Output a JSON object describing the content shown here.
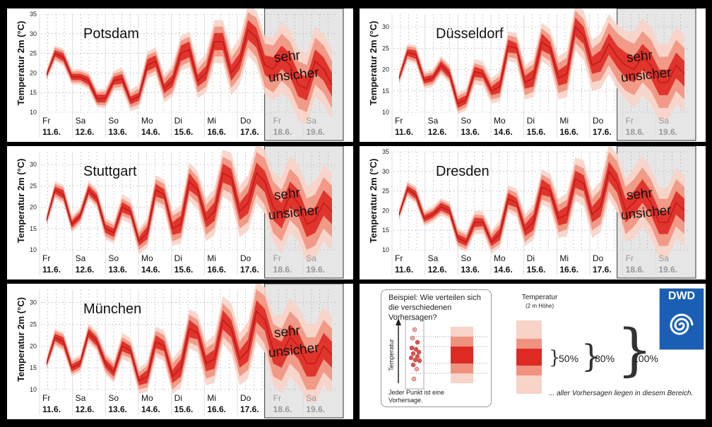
{
  "chart_data": [
    {
      "type": "area",
      "title": "Potsdam",
      "ylabel": "Temperatur 2m (°C)",
      "ylim": [
        10,
        35
      ],
      "yticks": [
        10,
        15,
        20,
        25,
        30,
        35
      ],
      "days": [
        "Fr",
        "Sa",
        "So",
        "Mo",
        "Di",
        "Mi",
        "Do",
        "Fr",
        "Sa"
      ],
      "dates": [
        "11.6.",
        "12.6.",
        "13.6.",
        "14.6.",
        "15.6.",
        "16.6.",
        "17.6.",
        "18.6.",
        "19.6."
      ],
      "uncertain_label": "sehr unsicher",
      "uncertain_from_day": 7,
      "median": [
        19.5,
        25,
        24,
        19,
        19,
        18,
        13.5,
        13.5,
        18,
        18.5,
        13,
        14,
        22,
        23,
        16,
        18,
        25,
        26,
        18,
        20,
        28,
        28,
        20,
        23,
        31,
        29,
        22,
        21,
        24,
        22,
        17,
        16,
        23,
        21,
        17
      ],
      "spread50": [
        0.5,
        0.8,
        1,
        0.8,
        0.8,
        1,
        1,
        1,
        1,
        1.2,
        1,
        1,
        1.5,
        1.5,
        1.2,
        1.5,
        2,
        2,
        1.5,
        1.8,
        2.2,
        2.2,
        2,
        2,
        2.5,
        2.5,
        2.5,
        3,
        3,
        3,
        3,
        3,
        3,
        3,
        3
      ],
      "spread80": [
        1,
        1.5,
        1.6,
        1.4,
        1.4,
        1.6,
        1.6,
        1.8,
        1.8,
        2,
        1.8,
        2,
        2.5,
        2.5,
        2.5,
        3,
        3.2,
        3.2,
        3,
        3.5,
        3.8,
        3.8,
        3.8,
        4,
        4.5,
        5,
        5.5,
        6,
        6,
        6,
        6,
        6,
        6,
        6,
        6
      ],
      "spread100": [
        1.5,
        2,
        2.2,
        2,
        2,
        2.2,
        2.2,
        2.5,
        2.5,
        3,
        2.8,
        3,
        3.5,
        3.5,
        3.5,
        4,
        4.5,
        4.5,
        4.5,
        5,
        5.5,
        5.5,
        5.8,
        6,
        6.5,
        7,
        7.5,
        8,
        9,
        9,
        9,
        9,
        9,
        9,
        9
      ]
    },
    {
      "type": "area",
      "title": "Düsseldorf",
      "ylabel": "Temperatur 2m (°C)",
      "ylim": [
        10,
        33
      ],
      "yticks": [
        10,
        15,
        20,
        25,
        30
      ],
      "days": [
        "Fr",
        "Sa",
        "So",
        "Mo",
        "Di",
        "Mi",
        "Do",
        "Fr",
        "Sa"
      ],
      "dates": [
        "11.6.",
        "12.6.",
        "13.6.",
        "14.6.",
        "15.6.",
        "16.6.",
        "17.6.",
        "18.6.",
        "19.6."
      ],
      "uncertain_label": "sehr unsicher",
      "uncertain_from_day": 7,
      "median": [
        18,
        24,
        23.5,
        17.5,
        18,
        21,
        19,
        12,
        13,
        19.5,
        19,
        15,
        16,
        25.5,
        25,
        17,
        18,
        26.5,
        25,
        18,
        19,
        30,
        28,
        21,
        22,
        26,
        23,
        21,
        20,
        23,
        21,
        17,
        17,
        21,
        19
      ],
      "spread50": [
        0.5,
        0.8,
        1,
        0.8,
        0.8,
        1,
        1,
        1,
        1,
        1.2,
        1,
        1,
        1.5,
        1.5,
        1.2,
        1.5,
        2,
        2,
        1.5,
        1.8,
        2.2,
        2.2,
        2,
        2,
        2.5,
        2.5,
        2.5,
        3,
        3,
        3,
        3,
        3,
        3,
        3,
        3
      ],
      "spread80": [
        1,
        1.5,
        1.6,
        1.4,
        1.4,
        1.6,
        1.6,
        1.8,
        1.8,
        2,
        1.8,
        2,
        2.5,
        2.5,
        2.5,
        3,
        3.2,
        3.2,
        3,
        3.5,
        3.8,
        3.8,
        3.8,
        4,
        4.5,
        5,
        5.5,
        6,
        6,
        6,
        6,
        6,
        6,
        6,
        6
      ],
      "spread100": [
        1.5,
        2,
        2.2,
        2,
        2,
        2.2,
        2.2,
        2.5,
        2.5,
        3,
        2.8,
        3,
        3.5,
        3.5,
        3.5,
        4,
        4.5,
        4.5,
        4.5,
        5,
        5.5,
        5.5,
        5.8,
        6,
        6.5,
        7,
        7.5,
        8,
        9,
        9,
        9,
        9,
        9,
        9,
        9
      ]
    },
    {
      "type": "area",
      "title": "Stuttgart",
      "ylabel": "Temperatur 2m (°C)",
      "ylim": [
        10,
        33
      ],
      "yticks": [
        10,
        15,
        20,
        25,
        30
      ],
      "days": [
        "Fr",
        "Sa",
        "So",
        "Mo",
        "Di",
        "Mi",
        "Do",
        "Fr",
        "Sa"
      ],
      "dates": [
        "11.6.",
        "12.6.",
        "13.6.",
        "14.6.",
        "15.6.",
        "16.6.",
        "17.6.",
        "18.6.",
        "19.6."
      ],
      "uncertain_label": "sehr unsicher",
      "uncertain_from_day": 7,
      "median": [
        17,
        24,
        23,
        16,
        18,
        24,
        22,
        15,
        14,
        20,
        19,
        12,
        14,
        24,
        23,
        15,
        16,
        26,
        24,
        17,
        19,
        28,
        27,
        19,
        21,
        28,
        26,
        20,
        18,
        23,
        21,
        16,
        17,
        21,
        19
      ],
      "spread50": [
        0.5,
        0.8,
        1,
        0.8,
        0.8,
        1,
        1,
        1,
        1,
        1.2,
        1,
        1,
        1.5,
        1.5,
        1.2,
        1.5,
        2,
        2,
        1.5,
        1.8,
        2.2,
        2.2,
        2,
        2,
        2.5,
        2.5,
        2.5,
        3,
        3,
        3,
        3,
        3,
        3,
        3,
        3
      ],
      "spread80": [
        1,
        1.5,
        1.6,
        1.4,
        1.4,
        1.6,
        1.6,
        1.8,
        1.8,
        2,
        1.8,
        2,
        2.5,
        2.5,
        2.5,
        3,
        3.2,
        3.2,
        3,
        3.5,
        3.8,
        3.8,
        3.8,
        4,
        4.5,
        5,
        5.5,
        6,
        6,
        6,
        6,
        6,
        6,
        6,
        6
      ],
      "spread100": [
        1.5,
        2,
        2.2,
        2,
        2,
        2.2,
        2.2,
        2.5,
        2.5,
        3,
        2.8,
        3,
        3.5,
        3.5,
        3.5,
        4,
        4.5,
        4.5,
        4.5,
        5,
        5.5,
        5.5,
        5.8,
        6,
        6.5,
        7,
        7.5,
        8,
        9,
        9,
        9,
        9,
        9,
        9,
        9
      ]
    },
    {
      "type": "area",
      "title": "Dresden",
      "ylabel": "Temperatur 2m (°C)",
      "ylim": [
        10,
        35
      ],
      "yticks": [
        10,
        15,
        20,
        25,
        30,
        35
      ],
      "days": [
        "Fr",
        "Sa",
        "So",
        "Mo",
        "Di",
        "Mi",
        "Do",
        "Fr",
        "Sa"
      ],
      "dates": [
        "11.6.",
        "12.6.",
        "13.6.",
        "14.6.",
        "15.6.",
        "16.6.",
        "17.6.",
        "18.6.",
        "19.6."
      ],
      "uncertain_label": "sehr unsicher",
      "uncertain_from_day": 7,
      "median": [
        19,
        25.5,
        24,
        18,
        19,
        21,
        20,
        13,
        12,
        17,
        17,
        12,
        14,
        23,
        22,
        15,
        17,
        26,
        25,
        18,
        19,
        28,
        27,
        19,
        21,
        30,
        27,
        20,
        22,
        25,
        22,
        17,
        17,
        22,
        20
      ],
      "spread50": [
        0.5,
        0.8,
        1,
        0.8,
        0.8,
        1,
        1,
        1,
        1,
        1.2,
        1,
        1,
        1.5,
        1.5,
        1.2,
        1.5,
        2,
        2,
        1.5,
        1.8,
        2.2,
        2.2,
        2,
        2,
        2.5,
        2.5,
        2.5,
        3,
        3,
        3,
        3,
        3,
        3,
        3,
        3
      ],
      "spread80": [
        1,
        1.5,
        1.6,
        1.4,
        1.4,
        1.6,
        1.6,
        1.8,
        1.8,
        2,
        1.8,
        2,
        2.5,
        2.5,
        2.5,
        3,
        3.2,
        3.2,
        3,
        3.5,
        3.8,
        3.8,
        3.8,
        4,
        4.5,
        5,
        5.5,
        6,
        6,
        6,
        6,
        6,
        6,
        6,
        6
      ],
      "spread100": [
        1.5,
        2,
        2.2,
        2,
        2,
        2.2,
        2.2,
        2.5,
        2.5,
        3,
        2.8,
        3,
        3.5,
        3.5,
        3.5,
        4,
        4.5,
        4.5,
        4.5,
        5,
        5.5,
        5.5,
        5.8,
        6,
        6.5,
        7,
        7.5,
        8,
        9,
        9,
        9,
        9,
        9,
        9,
        9
      ]
    },
    {
      "type": "area",
      "title": "München",
      "ylabel": "Temperatur 2m (°C)",
      "ylim": [
        10,
        33
      ],
      "yticks": [
        10,
        15,
        20,
        25,
        30
      ],
      "days": [
        "Fr",
        "Sa",
        "So",
        "Mo",
        "Di",
        "Mi",
        "Do",
        "Fr",
        "Sa"
      ],
      "dates": [
        "11.6.",
        "12.6.",
        "13.6.",
        "14.6.",
        "15.6.",
        "16.6.",
        "17.6.",
        "18.6.",
        "19.6."
      ],
      "uncertain_label": "sehr unsicher",
      "uncertain_from_day": 7,
      "median": [
        16,
        22,
        21,
        15,
        16,
        23,
        21,
        16,
        14,
        20,
        19,
        12,
        13,
        21,
        20,
        13,
        15,
        24,
        23,
        16,
        17,
        26,
        24,
        17,
        19,
        28,
        26,
        19,
        18,
        22,
        20,
        16,
        16,
        20,
        18
      ],
      "spread50": [
        0.5,
        0.8,
        1,
        0.8,
        0.8,
        1,
        1,
        1,
        1,
        1.2,
        1,
        1,
        1.5,
        1.5,
        1.2,
        1.5,
        2,
        2,
        1.5,
        1.8,
        2.2,
        2.2,
        2,
        2,
        2.5,
        2.5,
        2.5,
        3,
        3,
        3,
        3,
        3,
        3,
        3,
        3
      ],
      "spread80": [
        1,
        1.5,
        1.6,
        1.4,
        1.4,
        1.6,
        1.6,
        1.8,
        1.8,
        2,
        1.8,
        2,
        2.5,
        2.5,
        2.5,
        3,
        3.2,
        3.2,
        3,
        3.5,
        3.8,
        3.8,
        3.8,
        4,
        4.5,
        5,
        5.5,
        6,
        6,
        6,
        6,
        6,
        6,
        6,
        6
      ],
      "spread100": [
        1.5,
        2,
        2.2,
        2,
        2,
        2.2,
        2.2,
        2.5,
        2.5,
        3,
        2.8,
        3,
        3.5,
        3.5,
        3.5,
        4,
        4.5,
        4.5,
        4.5,
        5,
        5.5,
        5.5,
        5.8,
        6,
        6.5,
        7,
        7.5,
        8,
        9,
        9,
        9,
        9,
        9,
        9,
        9
      ]
    }
  ],
  "legend": {
    "example_title": "Beispiel: Wie verteilen sich die verschiedenen Vorhersagen?",
    "example_axis": "Temperatur",
    "example_footer": "Jeder Punkt ist eine Vorhersage.",
    "temp_title": "Temperatur",
    "temp_subtitle": "(2 m Höhe)",
    "pct50": "50%",
    "pct80": "80%",
    "pct100": "100%",
    "footer": "... aller Vorhersagen liegen in diesem Bereich.",
    "logo_text": "DWD",
    "colors": {
      "band100": "#f8d3c8",
      "band80": "#ef9380",
      "band50": "#dd2a22",
      "logo": "#1a5fb4"
    }
  }
}
